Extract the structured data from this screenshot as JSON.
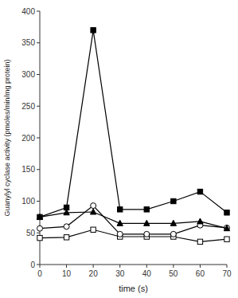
{
  "chart_data": {
    "type": "line",
    "x": [
      0,
      10,
      20,
      30,
      40,
      50,
      60,
      70
    ],
    "series": [
      {
        "color": "#000000",
        "marker": "open-square",
        "line_style": "solid",
        "values": [
          42,
          43,
          55,
          44,
          44,
          44,
          36,
          40
        ]
      },
      {
        "color": "#000000",
        "marker": "open-circle",
        "line_style": "solid",
        "values": [
          57,
          60,
          93,
          48,
          48,
          48,
          62,
          58
        ]
      },
      {
        "color": "#000000",
        "marker": "filled-triangle",
        "line_style": "solid",
        "values": [
          75,
          82,
          83,
          65,
          65,
          65,
          68,
          57
        ]
      },
      {
        "color": "#000000",
        "marker": "filled-square",
        "line_style": "solid",
        "values": [
          75,
          90,
          370,
          87,
          87,
          100,
          115,
          82
        ]
      }
    ],
    "xlabel": "time (s)",
    "ylabel": "Guanylyl cyclase activity (pmoles/min/mg protein)",
    "xlim": [
      0,
      70
    ],
    "ylim": [
      0,
      400
    ],
    "xticks": [
      0,
      10,
      20,
      30,
      40,
      50,
      60,
      70
    ],
    "yticks": [
      0,
      50,
      100,
      150,
      200,
      250,
      300,
      350,
      400
    ],
    "grid": false
  }
}
